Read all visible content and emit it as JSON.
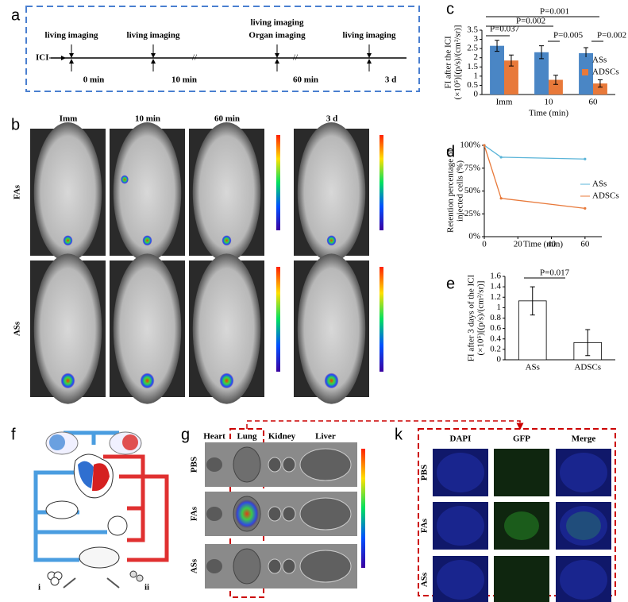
{
  "panel_labels": [
    "a",
    "b",
    "c",
    "d",
    "e",
    "f",
    "g",
    "k"
  ],
  "timeline": {
    "inject_label": "ICI",
    "events": [
      {
        "labels": [
          "living imaging"
        ],
        "time": "0 min"
      },
      {
        "labels": [
          "living imaging"
        ],
        "time": "10 min"
      },
      {
        "labels": [
          "living imaging",
          "Organ imaging"
        ],
        "time": "60 min"
      },
      {
        "labels": [
          "living imaging"
        ],
        "time": "3 d"
      }
    ]
  },
  "imaging": {
    "columns": [
      "Imm",
      "10 min",
      "60 min",
      "3 d"
    ],
    "rows": [
      "FAs",
      "ASs"
    ]
  },
  "chart_data": [
    {
      "type": "bar",
      "ylabel": [
        "FI after the ICI",
        "(×10⁵)[(p/s)/(cm²/sr)]"
      ],
      "xlabel": "Time (min)",
      "categories": [
        "Imm",
        "10",
        "60"
      ],
      "series": [
        {
          "name": "ASs",
          "color": "#4a86c5",
          "values": [
            2.65,
            2.3,
            2.25
          ],
          "errors": [
            0.3,
            0.35,
            0.3
          ]
        },
        {
          "name": "ADSCs",
          "color": "#e8793a",
          "values": [
            1.85,
            0.8,
            0.6
          ],
          "errors": [
            0.3,
            0.25,
            0.2
          ]
        }
      ],
      "ylim": [
        0,
        3.5
      ],
      "yticks": [
        0,
        0.5,
        1,
        1.5,
        2,
        2.5,
        3,
        3.5
      ],
      "legend": "right",
      "annotations": [
        "P=0.037",
        "P=0.002",
        "P=0.001",
        "P=0.005",
        "P=0.002"
      ]
    },
    {
      "type": "line",
      "ylabel": [
        "Retention percentage of",
        "injected cells (%)"
      ],
      "xlabel": "Time (min)",
      "x": [
        0,
        10,
        60
      ],
      "series": [
        {
          "name": "ASs",
          "color": "#5ab4d8",
          "values": [
            100,
            87,
            85
          ]
        },
        {
          "name": "ADSCs",
          "color": "#e8793a",
          "values": [
            100,
            42,
            31
          ]
        }
      ],
      "xlim": [
        0,
        70
      ],
      "xticks": [
        0,
        20,
        40,
        60
      ],
      "ylim": [
        0,
        100
      ],
      "yticks": [
        {
          "value": 0,
          "label": "0%"
        },
        {
          "value": 25,
          "label": "25%"
        },
        {
          "value": 50,
          "label": "50%"
        },
        {
          "value": 75,
          "label": "75%"
        },
        {
          "value": 100,
          "label": "100%"
        }
      ],
      "legend": "right"
    },
    {
      "type": "bar",
      "ylabel": [
        "FI after 3 days of the ICI",
        "(×10⁵)[(p/s)/(cm²/sr)]"
      ],
      "categories": [
        "ASs",
        "ADSCs"
      ],
      "series": [
        {
          "color": "#ffffff",
          "values": [
            1.13,
            0.33
          ],
          "errors": [
            0.27,
            0.25
          ]
        }
      ],
      "ylim": [
        0,
        1.6
      ],
      "yticks": [
        0,
        0.2,
        0.4,
        0.6,
        0.8,
        1,
        1.2,
        1.4,
        1.6
      ],
      "annotations": [
        "P=0.017"
      ]
    }
  ],
  "circulation": {
    "labels": [
      "i",
      "ii"
    ]
  },
  "organs": {
    "columns": [
      "Heart",
      "Lung",
      "Kidney",
      "Liver"
    ],
    "rows": [
      "PBS",
      "FAs",
      "ASs"
    ]
  },
  "fluorescence": {
    "columns": [
      "DAPI",
      "GFP",
      "Merge"
    ],
    "column_colors": [
      "#2233cc",
      "#22aa22",
      "#000000"
    ],
    "rows": [
      "PBS",
      "FAs",
      "ASs"
    ]
  }
}
